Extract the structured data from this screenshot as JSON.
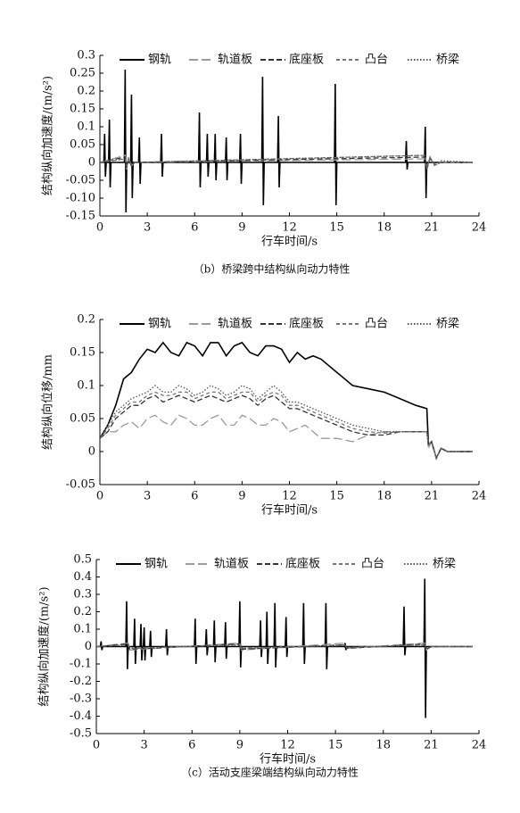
{
  "chart_data": [
    {
      "type": "line",
      "x_label": "行车时间/s",
      "y_label": "结构纵向加速度/(m/s²)",
      "caption": "（b）桥梁跨中结构纵向动力特性",
      "xlim": [
        0,
        24
      ],
      "xticks": [
        0,
        3,
        6,
        9,
        12,
        15,
        18,
        21,
        24
      ],
      "ylim": [
        -0.15,
        0.3
      ],
      "yticks": [
        0.3,
        0.25,
        0.2,
        0.15,
        0.1,
        0.05,
        0,
        -0.05,
        {
          "value": -0.1,
          "label": "-0.10"
        },
        -0.15
      ],
      "series": [
        {
          "name": "钢轨",
          "color": "#000000",
          "dash": "solid",
          "x": [
            0,
            0.25,
            0.3,
            0.35,
            0.4,
            0.55,
            0.6,
            0.65,
            0.7,
            1.55,
            1.6,
            1.65,
            1.7,
            1.95,
            2,
            2.05,
            2.1,
            2.45,
            2.5,
            2.55,
            2.6,
            3.85,
            3.9,
            3.95,
            4,
            6.25,
            6.3,
            6.35,
            6.4,
            6.75,
            6.8,
            6.85,
            6.9,
            7.25,
            7.3,
            7.35,
            7.4,
            7.95,
            8,
            8.05,
            8.1,
            8.85,
            8.9,
            8.95,
            9,
            10.25,
            10.3,
            10.35,
            10.4,
            11.25,
            11.3,
            11.35,
            11.4,
            14.85,
            14.9,
            14.95,
            15,
            19.35,
            19.4,
            19.45,
            19.5,
            20.55,
            20.6,
            20.65,
            20.7,
            23.6
          ],
          "values": [
            0,
            0,
            0.08,
            -0.04,
            0,
            0,
            0.12,
            -0.07,
            0,
            0,
            0.26,
            -0.14,
            0,
            0,
            0.19,
            -0.1,
            0,
            0,
            0.07,
            -0.06,
            0,
            0,
            0.08,
            -0.04,
            0,
            0,
            0.14,
            -0.07,
            0,
            0,
            0.08,
            -0.04,
            0,
            0,
            0.08,
            -0.05,
            0,
            0,
            0.07,
            -0.05,
            0,
            0,
            0.08,
            -0.06,
            0,
            0,
            0.24,
            -0.12,
            0,
            0,
            0.13,
            -0.07,
            0,
            0,
            0.22,
            -0.12,
            0,
            0,
            0.06,
            -0.02,
            0,
            0,
            0.1,
            -0.1,
            0,
            0
          ]
        },
        {
          "name": "轨道板",
          "color": "#9a9a9a",
          "dash": "long-dash",
          "x": [
            0,
            1.6,
            1.7,
            1.8,
            2,
            2.2,
            20.6,
            20.7,
            20.9,
            21.2,
            21.6,
            23.6
          ],
          "values": [
            0,
            0.02,
            -0.02,
            0.015,
            -0.01,
            0,
            0.01,
            -0.015,
            0.01,
            -0.005,
            0,
            0
          ]
        },
        {
          "name": "底座板",
          "color": "#333333",
          "dash": "dash",
          "x": [
            0,
            1.6,
            1.7,
            1.8,
            2,
            2.2,
            20.6,
            20.7,
            20.9,
            21.2,
            21.6,
            23.6
          ],
          "values": [
            0,
            0.015,
            -0.015,
            0.01,
            -0.01,
            0,
            0.015,
            -0.02,
            0.012,
            -0.006,
            0,
            0
          ]
        },
        {
          "name": "凸台",
          "color": "#777777",
          "dash": "short-dash",
          "x": [
            0,
            1.6,
            1.7,
            1.8,
            2,
            2.2,
            20.6,
            20.7,
            20.9,
            21.2,
            21.6,
            23.6
          ],
          "values": [
            0,
            0.01,
            -0.01,
            0.01,
            -0.005,
            0,
            0.02,
            -0.02,
            0.015,
            -0.008,
            0,
            0
          ]
        },
        {
          "name": "桥梁",
          "color": "#555555",
          "dash": "dot",
          "x": [
            0,
            1.6,
            1.7,
            1.8,
            2,
            2.2,
            20.6,
            20.7,
            20.9,
            21.2,
            21.6,
            23.6
          ],
          "values": [
            0,
            0.01,
            -0.008,
            0.005,
            -0.004,
            0,
            0.02,
            -0.02,
            0.015,
            -0.01,
            0.005,
            0
          ]
        }
      ]
    },
    {
      "type": "line",
      "x_label": "行车时间/s",
      "y_label": "结构纵向位移/mm",
      "xlim": [
        0,
        24
      ],
      "xticks": [
        0,
        3,
        6,
        9,
        12,
        15,
        18,
        21,
        24
      ],
      "ylim": [
        -0.05,
        0.2
      ],
      "yticks": [
        0.2,
        0.15,
        0.1,
        0.05,
        0,
        -0.05
      ],
      "x": [
        0,
        0.5,
        1,
        1.5,
        2,
        2.5,
        3,
        3.5,
        4,
        4.5,
        5,
        5.5,
        6,
        6.5,
        7,
        7.5,
        8,
        8.5,
        9,
        9.5,
        10,
        10.5,
        11,
        11.5,
        12,
        12.5,
        13,
        13.5,
        14,
        15,
        16,
        17,
        18,
        19,
        20,
        20.7,
        20.8,
        21,
        21.3,
        21.6,
        22,
        23.6
      ],
      "series": [
        {
          "name": "钢轨",
          "color": "#000000",
          "dash": "solid",
          "values": [
            0.02,
            0.04,
            0.07,
            0.11,
            0.12,
            0.14,
            0.155,
            0.15,
            0.165,
            0.15,
            0.145,
            0.165,
            0.16,
            0.145,
            0.165,
            0.165,
            0.145,
            0.16,
            0.165,
            0.15,
            0.145,
            0.16,
            0.16,
            0.155,
            0.135,
            0.15,
            0.14,
            0.145,
            0.14,
            0.12,
            0.1,
            0.095,
            0.09,
            0.08,
            0.07,
            0.065,
            0.01,
            0.015,
            -0.01,
            0.005,
            0,
            0
          ]
        },
        {
          "name": "轨道板",
          "color": "#9a9a9a",
          "dash": "long-dash",
          "values": [
            0.02,
            0.03,
            0.03,
            0.04,
            0.045,
            0.035,
            0.05,
            0.055,
            0.045,
            0.04,
            0.055,
            0.05,
            0.04,
            0.04,
            0.05,
            0.055,
            0.04,
            0.04,
            0.055,
            0.05,
            0.04,
            0.04,
            0.05,
            0.045,
            0.03,
            0.035,
            0.04,
            0.03,
            0.02,
            0.02,
            0.015,
            0.025,
            0.03,
            0.03,
            0.03,
            0.03,
            0.005,
            0.015,
            -0.01,
            0.005,
            0,
            0
          ]
        },
        {
          "name": "底座板",
          "color": "#333333",
          "dash": "dash",
          "values": [
            0.02,
            0.03,
            0.05,
            0.06,
            0.07,
            0.07,
            0.08,
            0.085,
            0.075,
            0.08,
            0.085,
            0.08,
            0.075,
            0.08,
            0.085,
            0.08,
            0.075,
            0.08,
            0.085,
            0.08,
            0.07,
            0.08,
            0.085,
            0.075,
            0.065,
            0.065,
            0.06,
            0.055,
            0.05,
            0.04,
            0.03,
            0.025,
            0.025,
            0.03,
            0.03,
            0.03,
            0.01,
            0.015,
            -0.01,
            0.005,
            0,
            0
          ]
        },
        {
          "name": "凸台",
          "color": "#777777",
          "dash": "short-dash",
          "values": [
            0.02,
            0.035,
            0.055,
            0.065,
            0.075,
            0.075,
            0.085,
            0.09,
            0.085,
            0.085,
            0.09,
            0.09,
            0.08,
            0.085,
            0.09,
            0.09,
            0.08,
            0.085,
            0.09,
            0.09,
            0.075,
            0.085,
            0.09,
            0.085,
            0.07,
            0.07,
            0.065,
            0.06,
            0.055,
            0.045,
            0.035,
            0.03,
            0.028,
            0.03,
            0.03,
            0.03,
            0.01,
            0.015,
            -0.01,
            0.005,
            0,
            0
          ]
        },
        {
          "name": "桥梁",
          "color": "#555555",
          "dash": "dot",
          "values": [
            0.02,
            0.04,
            0.06,
            0.07,
            0.08,
            0.085,
            0.09,
            0.1,
            0.09,
            0.09,
            0.1,
            0.095,
            0.085,
            0.09,
            0.1,
            0.095,
            0.085,
            0.09,
            0.1,
            0.095,
            0.08,
            0.09,
            0.1,
            0.09,
            0.075,
            0.075,
            0.07,
            0.065,
            0.06,
            0.05,
            0.04,
            0.035,
            0.03,
            0.03,
            0.03,
            0.03,
            0.01,
            0.015,
            -0.01,
            0.005,
            0,
            0
          ]
        }
      ]
    },
    {
      "type": "line",
      "x_label": "行车时间/s",
      "y_label": "结构纵向加速度/(m/s²)",
      "caption": "（c）活动支座梁端结构纵向动力特性",
      "xlim": [
        0,
        24
      ],
      "xticks": [
        0,
        3,
        6,
        9,
        12,
        15,
        18,
        21,
        24
      ],
      "ylim": [
        -0.5,
        0.5
      ],
      "yticks": [
        0.5,
        0.4,
        0.3,
        0.2,
        0.1,
        0,
        -0.1,
        -0.2,
        -0.3,
        -0.4,
        -0.5
      ],
      "series": [
        {
          "name": "钢轨",
          "color": "#000000",
          "dash": "solid",
          "x": [
            0,
            0.25,
            0.3,
            0.35,
            0.4,
            1.85,
            1.9,
            1.95,
            2,
            2.35,
            2.4,
            2.45,
            2.5,
            2.75,
            2.8,
            2.85,
            2.9,
            2.95,
            3,
            3.05,
            3.1,
            3.35,
            3.4,
            3.45,
            3.5,
            4.35,
            4.4,
            4.45,
            4.5,
            6.15,
            6.2,
            6.25,
            6.3,
            6.85,
            6.9,
            6.95,
            7,
            7.35,
            7.4,
            7.45,
            7.5,
            8.05,
            8.1,
            8.15,
            8.2,
            8.95,
            9,
            9.05,
            9.1,
            10.25,
            10.3,
            10.35,
            10.4,
            10.65,
            10.7,
            10.75,
            10.8,
            11.15,
            11.2,
            11.25,
            11.3,
            11.85,
            11.9,
            11.95,
            12,
            12.95,
            13,
            13.05,
            13.1,
            14.35,
            14.4,
            14.45,
            14.5,
            15.55,
            15.6,
            15.65,
            15.7,
            19.25,
            19.3,
            19.35,
            19.4,
            20.55,
            20.6,
            20.65,
            20.7,
            23.6
          ],
          "values": [
            0,
            0,
            0.03,
            -0.02,
            0,
            0,
            0.26,
            -0.13,
            0,
            0,
            0.16,
            -0.1,
            0,
            0,
            0.13,
            -0.08,
            0,
            0,
            0.11,
            -0.08,
            0,
            0,
            0.09,
            -0.06,
            0,
            0,
            0.1,
            -0.05,
            0,
            0,
            0.16,
            -0.1,
            0,
            0,
            0.1,
            -0.05,
            0,
            0,
            0.15,
            -0.09,
            0,
            0,
            0.14,
            -0.07,
            0,
            0,
            0.26,
            -0.12,
            0,
            0,
            0.15,
            -0.06,
            0,
            0,
            0.2,
            -0.1,
            0,
            0,
            0.25,
            -0.12,
            0,
            0,
            0.17,
            -0.06,
            0,
            0,
            0.25,
            -0.1,
            0,
            0,
            0.25,
            -0.13,
            0,
            0,
            0.02,
            -0.02,
            0,
            0,
            0.23,
            -0.05,
            0,
            0,
            0.39,
            -0.41,
            0,
            0
          ]
        },
        {
          "name": "轨道板",
          "color": "#9a9a9a",
          "dash": "long-dash",
          "x": [
            0,
            2,
            2.1,
            9,
            9.1,
            15.6,
            15.7,
            20.6,
            20.7,
            21,
            23.6
          ],
          "values": [
            0,
            0.02,
            -0.02,
            0.02,
            -0.02,
            0.02,
            -0.01,
            0.02,
            -0.02,
            0,
            0
          ]
        },
        {
          "name": "底座板",
          "color": "#333333",
          "dash": "dash",
          "x": [
            0,
            2,
            2.1,
            9,
            9.1,
            15.6,
            15.7,
            20.6,
            20.7,
            21,
            23.6
          ],
          "values": [
            0,
            0.015,
            -0.015,
            0.015,
            -0.015,
            0.01,
            -0.01,
            0.015,
            -0.015,
            0,
            0
          ]
        },
        {
          "name": "凸台",
          "color": "#777777",
          "dash": "short-dash",
          "x": [
            0,
            2,
            2.1,
            9,
            9.1,
            15.6,
            15.7,
            20.6,
            20.7,
            21,
            23.6
          ],
          "values": [
            0,
            0.01,
            -0.01,
            0.01,
            -0.01,
            0.01,
            -0.005,
            0.01,
            -0.01,
            0,
            0
          ]
        },
        {
          "name": "桥梁",
          "color": "#555555",
          "dash": "dot",
          "x": [
            0,
            2,
            2.1,
            9,
            9.1,
            15.6,
            15.7,
            20.6,
            20.7,
            21,
            23.6
          ],
          "values": [
            0,
            0.01,
            -0.01,
            0.01,
            -0.01,
            0.005,
            -0.005,
            0.01,
            -0.01,
            0,
            0
          ]
        }
      ]
    }
  ]
}
